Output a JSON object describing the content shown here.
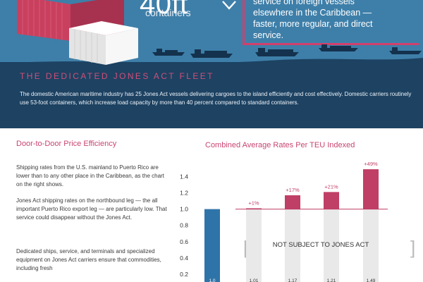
{
  "banner": {
    "container_size": "40ft",
    "container_caption": "containers",
    "arrow_icon": "down-arrow-icon",
    "quote": [
      "service on foreign vessels",
      "elsewhere in the Caribbean —",
      "faster, more regular, and direct",
      "service."
    ],
    "fleet_title": "THE DEDICATED JONES ACT FLEET",
    "fleet_text": "The domestic American maritime industry has 25 Jones Act vessels delivering cargoes to the island efficiently and cost effectively. Domestic carriers routinely use 53-foot containers, which increase load capacity by more than 40 percent compared to standard containers.",
    "colors": {
      "sea": "#1d4262",
      "sky": "#3e7fa9",
      "accent": "#d33f6b",
      "container_red": "#c9405f",
      "container_white": "#f2f2f2"
    }
  },
  "left": {
    "heading": "Door-to-Door Price Efficiency",
    "paragraphs": [
      "Shipping rates from the U.S. mainland to Puerto Rico are lower than to any other place in the Caribbean, as the chart on the right shows.",
      "Jones Act shipping rates on the northbound leg — the all important Puerto Rico export leg — are particularly low.  That service could disappear without the Jones Act.",
      "Dedicated ships, service, and terminals and specialized equipment on Jones Act carriers ensure that commodities, including fresh"
    ]
  },
  "chart_data": {
    "type": "bar",
    "title": "Combined Average Rates Per TEU Indexed",
    "categories": [
      "",
      "",
      "",
      "",
      ""
    ],
    "values": [
      1.0,
      1.01,
      1.17,
      1.21,
      1.49
    ],
    "value_labels": [
      "1.0",
      "1.01",
      "1.17",
      "1.21",
      "1.49"
    ],
    "change_labels": [
      "",
      "+1%",
      "+17%",
      "+21%",
      "+49%"
    ],
    "colors": [
      "#2f74a8",
      "#c03f66",
      "#c03f66",
      "#c03f66",
      "#c03f66"
    ],
    "yticks": [
      "0.2",
      "0.4",
      "0.6",
      "0.8",
      "1.0",
      "1.2",
      "1.4"
    ],
    "ylim": [
      0,
      1.6
    ],
    "bracket_label": "NOT SUBJECT TO JONES ACT",
    "reference_line": 1.0
  }
}
